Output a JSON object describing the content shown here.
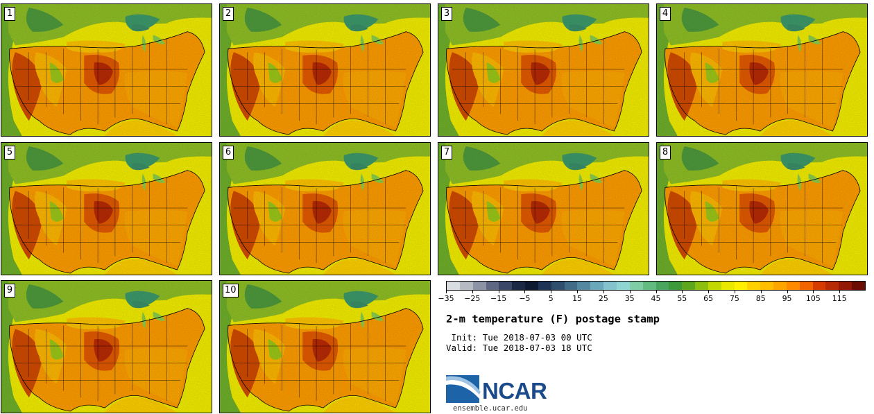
{
  "panels": [
    {
      "label": "1"
    },
    {
      "label": "2"
    },
    {
      "label": "3"
    },
    {
      "label": "4"
    },
    {
      "label": "5"
    },
    {
      "label": "6"
    },
    {
      "label": "7"
    },
    {
      "label": "8"
    },
    {
      "label": "9"
    },
    {
      "label": "10"
    }
  ],
  "colorbar": {
    "colors": [
      "#d9dde2",
      "#b5bac3",
      "#8c93a4",
      "#5e6882",
      "#3a4766",
      "#1b2944",
      "#0d1a30",
      "#1f3454",
      "#304f6e",
      "#416b87",
      "#5488a0",
      "#6aa7b8",
      "#85c3cc",
      "#8fd6d2",
      "#7fcda6",
      "#64bb82",
      "#4aa55e",
      "#3d9a3b",
      "#5fa61f",
      "#8cbf10",
      "#c2d800",
      "#e8e800",
      "#ffef00",
      "#ffd100",
      "#ffbe00",
      "#ffa500",
      "#ff8a00",
      "#f26400",
      "#d63b00",
      "#b82a04",
      "#941806",
      "#6b0d05"
    ],
    "tick_labels": [
      "−35",
      "−25",
      "−15",
      "−5",
      "5",
      "15",
      "25",
      "35",
      "45",
      "55",
      "65",
      "75",
      "85",
      "95",
      "105",
      "115"
    ]
  },
  "title": "2-m temperature (F) postage stamp",
  "init": " Init: Tue 2018-07-03 00 UTC",
  "valid": "Valid: Tue 2018-07-03 18 UTC",
  "logo": {
    "text": "NCAR",
    "brand_color": "#1a4a8a",
    "swoosh_color": "#1c63a8"
  },
  "site": "ensemble.ucar.edu"
}
